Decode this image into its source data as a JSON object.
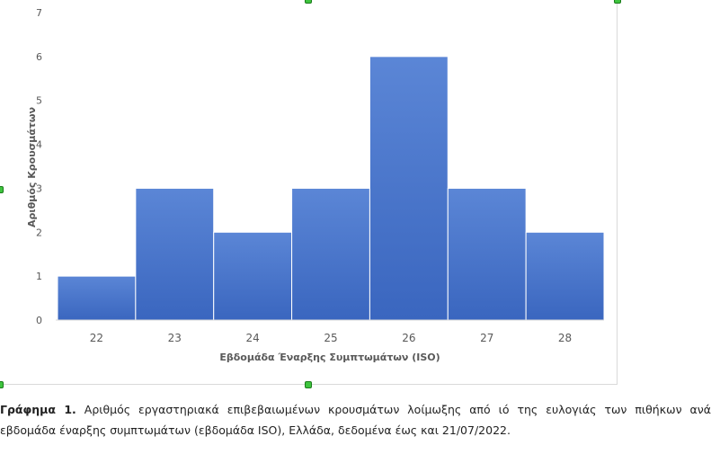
{
  "chart_data": {
    "type": "bar",
    "categories": [
      "22",
      "23",
      "24",
      "25",
      "26",
      "27",
      "28"
    ],
    "values": [
      1,
      3,
      2,
      3,
      6,
      3,
      2
    ],
    "xlabel": "Εβδομάδα Έναρξης Συμπτωμάτων (ISO)",
    "ylabel": "Αριθμός Κρουσμάτων",
    "ylim": [
      0,
      7
    ],
    "yticks": [
      "0",
      "1",
      "2",
      "3",
      "4",
      "5",
      "6",
      "7"
    ],
    "bar_color": "#4472c4",
    "grid": false
  },
  "caption": {
    "label": "Γράφημα 1.",
    "text": " Αριθμός εργαστηριακά επιβεβαιωμένων κρουσμάτων λοίμωξης από ιό της ευλογιάς των πιθήκων ανά εβδομάδα έναρξης συμπτωμάτων (εβδομάδα ISO), Ελλάδα, δεδομένα έως και 21/07/2022."
  }
}
